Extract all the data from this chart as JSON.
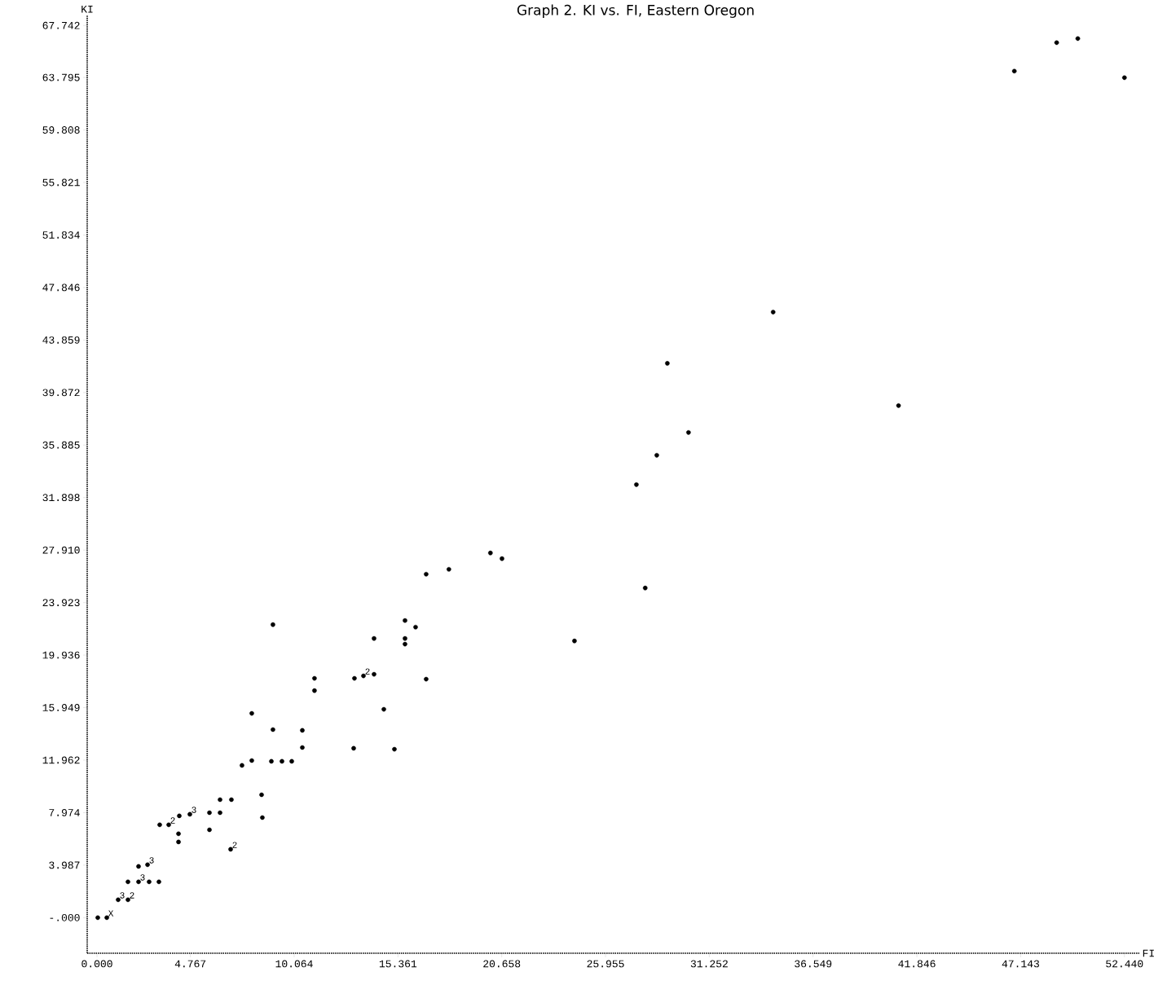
{
  "chart_data": {
    "type": "scatter",
    "title": "Graph 2.  KI vs. FI, Eastern Oregon",
    "xlabel": "FI",
    "ylabel": "KI",
    "series": [
      {
        "color": "#000000",
        "marker": "circle",
        "x": [
          0.5,
          1.08,
          1.58,
          2.12,
          2.58,
          3.66,
          4.74,
          6.82,
          13.6,
          0.04,
          1.58,
          2.66,
          3.16,
          2.12,
          3.2,
          4.2,
          4.16,
          4.16,
          5.74,
          6.28,
          5.74,
          6.28,
          6.86,
          7.4,
          7.9,
          8.9,
          9.44,
          9.94,
          8.4,
          8.44,
          7.9,
          8.98,
          8.98,
          10.48,
          10.48,
          11.1,
          11.1,
          13.1,
          13.14,
          14.14,
          14.14,
          14.64,
          15.18,
          15.72,
          16.26,
          15.72,
          15.72,
          16.8,
          16.8,
          17.96,
          20.08,
          20.67,
          24.37,
          27.53,
          27.98,
          28.57,
          29.11,
          30.19,
          34.51,
          40.91,
          46.82,
          48.98,
          50.06,
          52.44
        ],
        "values": [
          0.0,
          1.36,
          1.36,
          2.72,
          4.02,
          7.05,
          7.85,
          5.19,
          18.36,
          0.0,
          2.72,
          2.72,
          2.72,
          3.89,
          7.05,
          7.73,
          6.37,
          5.75,
          7.97,
          7.97,
          6.67,
          8.96,
          8.96,
          11.56,
          11.93,
          11.87,
          11.87,
          11.87,
          9.33,
          7.6,
          15.51,
          14.28,
          22.25,
          14.22,
          12.92,
          18.17,
          17.24,
          12.86,
          18.17,
          18.48,
          21.2,
          15.82,
          12.79,
          22.56,
          22.06,
          21.2,
          20.77,
          18.11,
          26.08,
          26.45,
          27.69,
          27.26,
          21.01,
          32.88,
          25.03,
          35.11,
          42.09,
          36.84,
          45.98,
          38.88,
          64.28,
          66.44,
          66.75,
          63.78
        ]
      }
    ],
    "annotations": [
      {
        "text": "X",
        "x": 0.5,
        "y": 0.0
      },
      {
        "text": "3",
        "x": 1.08,
        "y": 1.36
      },
      {
        "text": "2",
        "x": 1.58,
        "y": 1.36
      },
      {
        "text": "3",
        "x": 2.12,
        "y": 2.72
      },
      {
        "text": "3",
        "x": 2.58,
        "y": 4.02
      },
      {
        "text": "2",
        "x": 3.66,
        "y": 7.05
      },
      {
        "text": "3",
        "x": 4.74,
        "y": 7.85
      },
      {
        "text": "2",
        "x": 6.82,
        "y": 5.19
      },
      {
        "text": "2",
        "x": 13.6,
        "y": 18.36
      }
    ],
    "xlim": [
      -0.5,
      53.2
    ],
    "ylim": [
      -2.7,
      68.5
    ],
    "xticks": [
      {
        "value": 0,
        "label": "0.000"
      },
      4.767,
      10.064,
      15.361,
      20.658,
      25.955,
      31.252,
      36.549,
      41.846,
      47.143,
      {
        "value": 52.44,
        "label": "52.440"
      }
    ],
    "yticks": [
      {
        "value": 0,
        "label": "-.000"
      },
      3.987,
      7.974,
      11.962,
      15.949,
      19.936,
      23.923,
      {
        "value": 27.91,
        "label": "27.910"
      },
      31.898,
      35.885,
      39.872,
      43.859,
      47.846,
      51.834,
      55.821,
      59.808,
      63.795,
      67.742
    ]
  }
}
